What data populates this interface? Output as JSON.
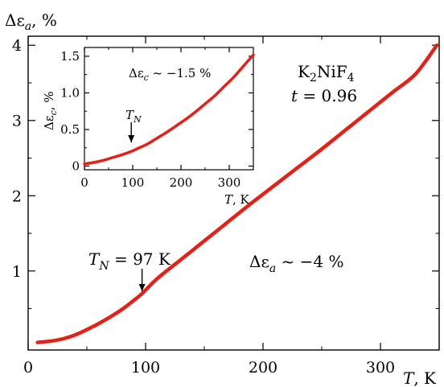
{
  "chart_data": [
    {
      "id": "main",
      "type": "line",
      "ylabel_symbol": "Δε",
      "ylabel_sub": "a",
      "ylabel_unit": ", %",
      "xlabel_symbol": "T",
      "xlabel_unit": ", K",
      "xlim": [
        0,
        350
      ],
      "ylim": [
        -0.05,
        4.12
      ],
      "xticks": [
        0,
        100,
        200,
        300
      ],
      "yticks": [
        1,
        2,
        3,
        4
      ],
      "xtick_labels": [
        "0",
        "100",
        "200",
        "300"
      ],
      "ytick_labels": [
        "1",
        "2",
        "3",
        "4"
      ],
      "series": [
        {
          "color": "#e32119",
          "x": [
            8,
            20,
            30,
            40,
            50,
            60,
            70,
            80,
            90,
            97,
            110,
            130,
            150,
            170,
            190,
            210,
            230,
            250,
            270,
            290,
            310,
            330,
            348
          ],
          "y": [
            0.05,
            0.07,
            0.1,
            0.15,
            0.22,
            0.3,
            0.39,
            0.49,
            0.61,
            0.7,
            0.9,
            1.15,
            1.4,
            1.65,
            1.9,
            2.14,
            2.38,
            2.62,
            2.87,
            3.12,
            3.37,
            3.62,
            4.0
          ]
        }
      ],
      "annotations": {
        "compound_prefix": "K",
        "compound_sub": "2",
        "compound_suffix": "NiF",
        "compound_sub2": "4",
        "t_label": "t",
        "t_value": " = 0.96",
        "tn_symbol": "T",
        "tn_sub": "N",
        "tn_value": " = 97 K",
        "delta_symbol": "Δε",
        "delta_sub": "a",
        "delta_value": " ~ −4 %",
        "arrow_at_x": 97
      }
    },
    {
      "id": "inset",
      "type": "line",
      "ylabel_symbol": "Δε",
      "ylabel_sub": "c",
      "ylabel_unit": ", %",
      "xlabel_symbol": "T",
      "xlabel_unit": ", K",
      "xlim": [
        0,
        350
      ],
      "ylim": [
        -0.05,
        1.62
      ],
      "xticks": [
        0,
        100,
        200,
        300
      ],
      "yticks": [
        0,
        0.5,
        1.0,
        1.5
      ],
      "xtick_labels": [
        "0",
        "100",
        "200",
        "300"
      ],
      "ytick_labels": [
        "0",
        "0.5",
        "1.0",
        "1.5"
      ],
      "series": [
        {
          "color": "#e32119",
          "x": [
            0,
            20,
            40,
            60,
            80,
            97,
            110,
            130,
            150,
            170,
            190,
            210,
            230,
            250,
            270,
            290,
            310,
            330,
            350
          ],
          "y": [
            0.03,
            0.05,
            0.08,
            0.12,
            0.16,
            0.2,
            0.24,
            0.3,
            0.38,
            0.46,
            0.55,
            0.64,
            0.74,
            0.85,
            0.96,
            1.09,
            1.22,
            1.37,
            1.52
          ]
        }
      ],
      "annotations": {
        "delta_symbol": "Δε",
        "delta_sub": "c",
        "delta_value": " ~ −1.5 %",
        "tn_symbol": "T",
        "tn_sub": "N",
        "arrow_at_x": 97
      }
    }
  ]
}
